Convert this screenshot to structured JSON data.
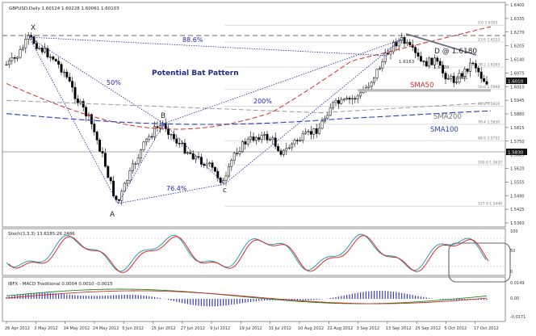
{
  "window": {
    "title": "GBPUSD,Daily  1.60124 1.60228 1.60061 1.60103"
  },
  "annotations": {
    "x": "X",
    "a": "A",
    "b": "B",
    "c": "c",
    "d": "D @ 1.6180",
    "pattern": "Potential Bat Pattern",
    "fib_886": "88.6%",
    "fib_50": "50%",
    "fib_200": "200%",
    "fib_764": "76.4%",
    "sma50": "SMA50",
    "sma200": "SMA200",
    "sma100": "SMA100",
    "lvl1": "1.6163",
    "lvl2": "1.6120",
    "lvl3": "1.6065"
  },
  "fib_levels": [
    {
      "label": "0.0  1.6303",
      "price": 1.6303
    },
    {
      "label": "23.6  1.6223",
      "price": 1.6223
    },
    {
      "label": "38.2  1.6103",
      "price": 1.6103
    },
    {
      "label": "50.0  1.5998",
      "price": 1.5998
    },
    {
      "label": "61.8  1.5916",
      "price": 1.5916
    },
    {
      "label": "76.4  1.5830",
      "price": 1.583
    },
    {
      "label": "88.6  1.5752",
      "price": 1.5752
    },
    {
      "label": "100.0  1.5637",
      "price": 1.5637
    },
    {
      "label": "127.0  1.5440",
      "price": 1.544
    }
  ],
  "price_axis": {
    "ticks": [
      "1.6400",
      "1.6335",
      "1.6270",
      "1.6205",
      "1.6140",
      "1.6075",
      "1.6010",
      "1.5945",
      "1.5880",
      "1.5815",
      "1.5750",
      "1.5685",
      "1.5620",
      "1.5555",
      "1.5490",
      "1.5425",
      "1.5360"
    ],
    "current_price": "1.6010",
    "marker_price": "1.5830"
  },
  "time_axis": {
    "ticks": [
      "26 Apr 2012",
      "3 May 2012",
      "14 May 2012",
      "24 May 2012",
      "5 Jun 2012",
      "15 Jun 2012",
      "27 Jun 2012",
      "9 Jul 2012",
      "19 Jul 2012",
      "31 Jul 2012",
      "10 Aug 2012",
      "22 Aug 2012",
      "3 Sep 2012",
      "13 Sep 2012",
      "25 Sep 2012",
      "5 Oct 2012",
      "17 Oct 2012"
    ]
  },
  "stoch": {
    "title": "Stoch(3,3,3) 13.6185 26.2486",
    "ticks": [
      "100",
      "50",
      "0"
    ]
  },
  "macd": {
    "title": "IBFX - MACD Traditional  0.0004 0.0010 -0.0015",
    "ticks": [
      "0.0149",
      "0.00",
      "-0.0171"
    ]
  },
  "colors": {
    "bg": "#ffffff",
    "candles": "#000000",
    "grid": "#c8c8c8",
    "wave": "#2222aa",
    "sma50": "#d42a2a",
    "sma100": "#2a3fb8",
    "sma200": "#999999",
    "text_blue": "#1e2a8c",
    "stoch_main": "#2a9db0",
    "stoch_signal": "#d42a2a",
    "macd_line": "#1a8a1a",
    "macd_signal": "#d42a2a",
    "macd_hist": "#3b3bc4"
  }
}
